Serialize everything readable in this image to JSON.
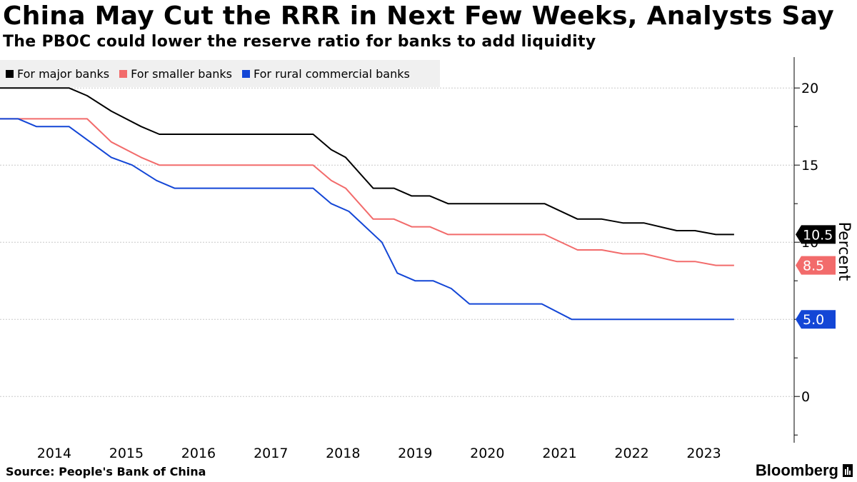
{
  "header": {
    "title": "China May Cut the RRR in Next Few Weeks, Analysts Say",
    "subtitle": "The PBOC could lower the reserve ratio for banks to add liquidity"
  },
  "footer": {
    "source": "Source:  People's Bank of China",
    "logo": "Bloomberg"
  },
  "chart_data": {
    "type": "line",
    "title": "China May Cut the RRR in Next Few Weeks, Analysts Say",
    "subtitle": "The PBOC could lower the reserve ratio for banks to add liquidity",
    "xlabel": "",
    "ylabel": "Percent",
    "ylim": [
      -3,
      22
    ],
    "xlim": [
      "2013-07-01",
      "2024-07-01"
    ],
    "y_ticks": [
      0,
      5,
      10,
      15,
      20
    ],
    "y_tick_labels": [
      "0",
      "5.0",
      "10",
      "15",
      "20"
    ],
    "x_tick_labels": [
      "2014",
      "2015",
      "2016",
      "2017",
      "2018",
      "2019",
      "2020",
      "2021",
      "2022",
      "2023"
    ],
    "x_tick_dates": [
      "2014-01-01",
      "2015-01-01",
      "2016-01-01",
      "2017-01-01",
      "2018-01-01",
      "2019-01-01",
      "2020-01-01",
      "2021-01-01",
      "2022-01-01",
      "2023-01-01"
    ],
    "grid": true,
    "legend_position": "top-left",
    "series": [
      {
        "name": "For major banks",
        "color": "#000000",
        "end_label": "10.5",
        "points": [
          [
            "2013-07-01",
            20.0
          ],
          [
            "2014-06-15",
            20.0
          ],
          [
            "2014-09-15",
            19.5
          ],
          [
            "2015-01-15",
            18.5
          ],
          [
            "2015-06-15",
            17.5
          ],
          [
            "2015-09-15",
            17.0
          ],
          [
            "2017-11-01",
            17.0
          ],
          [
            "2018-02-01",
            16.0
          ],
          [
            "2018-04-15",
            15.5
          ],
          [
            "2018-09-01",
            13.5
          ],
          [
            "2018-12-15",
            13.5
          ],
          [
            "2019-03-15",
            13.0
          ],
          [
            "2019-06-15",
            13.0
          ],
          [
            "2019-09-15",
            12.5
          ],
          [
            "2021-01-15",
            12.5
          ],
          [
            "2021-07-01",
            11.5
          ],
          [
            "2021-11-01",
            11.5
          ],
          [
            "2022-02-15",
            11.25
          ],
          [
            "2022-06-01",
            11.25
          ],
          [
            "2022-11-15",
            10.75
          ],
          [
            "2023-02-15",
            10.75
          ],
          [
            "2023-06-01",
            10.5
          ],
          [
            "2023-09-01",
            10.5
          ]
        ]
      },
      {
        "name": "For smaller banks",
        "color": "#f26b6b",
        "end_label": "8.5",
        "points": [
          [
            "2013-07-01",
            18.0
          ],
          [
            "2014-09-15",
            18.0
          ],
          [
            "2015-01-15",
            16.5
          ],
          [
            "2015-06-15",
            15.5
          ],
          [
            "2015-09-15",
            15.0
          ],
          [
            "2017-11-01",
            15.0
          ],
          [
            "2018-02-01",
            14.0
          ],
          [
            "2018-04-15",
            13.5
          ],
          [
            "2018-09-01",
            11.5
          ],
          [
            "2018-12-15",
            11.5
          ],
          [
            "2019-03-15",
            11.0
          ],
          [
            "2019-06-15",
            11.0
          ],
          [
            "2019-09-15",
            10.5
          ],
          [
            "2021-01-15",
            10.5
          ],
          [
            "2021-07-01",
            9.5
          ],
          [
            "2021-11-01",
            9.5
          ],
          [
            "2022-02-15",
            9.25
          ],
          [
            "2022-06-01",
            9.25
          ],
          [
            "2022-11-15",
            8.75
          ],
          [
            "2023-02-15",
            8.75
          ],
          [
            "2023-06-01",
            8.5
          ],
          [
            "2023-09-01",
            8.5
          ]
        ]
      },
      {
        "name": "For rural commercial banks",
        "color": "#1346d6",
        "end_label": "5.0",
        "points": [
          [
            "2013-07-01",
            18.0
          ],
          [
            "2013-10-01",
            18.0
          ],
          [
            "2014-01-01",
            17.5
          ],
          [
            "2014-06-15",
            17.5
          ],
          [
            "2015-01-15",
            15.5
          ],
          [
            "2015-05-01",
            15.0
          ],
          [
            "2015-09-01",
            14.0
          ],
          [
            "2015-12-01",
            13.5
          ],
          [
            "2017-11-01",
            13.5
          ],
          [
            "2018-02-01",
            12.5
          ],
          [
            "2018-05-01",
            12.0
          ],
          [
            "2018-10-15",
            10.0
          ],
          [
            "2019-01-01",
            8.0
          ],
          [
            "2019-04-01",
            7.5
          ],
          [
            "2019-07-01",
            7.5
          ],
          [
            "2019-10-01",
            7.0
          ],
          [
            "2020-01-01",
            6.0
          ],
          [
            "2021-01-01",
            6.0
          ],
          [
            "2021-06-01",
            5.0
          ],
          [
            "2023-09-01",
            5.0
          ]
        ]
      }
    ]
  }
}
